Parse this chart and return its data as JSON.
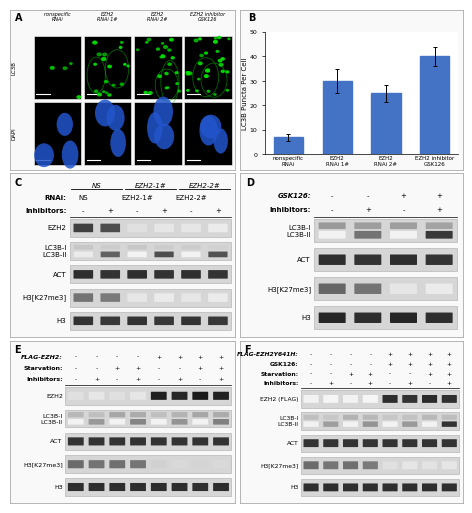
{
  "figure_width": 4.62,
  "figure_height": 5.0,
  "dpi": 100,
  "background_color": "#ffffff",
  "panel_label_fontsize": 7,
  "panel_label_color": "#000000",
  "bar_chart": {
    "categories": [
      "nonspecific\nRNAi",
      "EZH2\nRNAi 1#",
      "EZH2\nRNAi 2#",
      "EZH2 inhibitor\nGSK126"
    ],
    "values": [
      7,
      30,
      25,
      40
    ],
    "errors": [
      1.5,
      5,
      3.5,
      4
    ],
    "bar_color": "#4472c4",
    "bar_width": 0.6,
    "ylabel": "LC3B Puncta Per Cell",
    "ylim": [
      0,
      50
    ],
    "yticks": [
      0,
      10,
      20,
      30,
      40,
      50
    ],
    "ylabel_fontsize": 5.0,
    "tick_fontsize": 4.5,
    "xtick_fontsize": 4.0,
    "error_color": "#000000",
    "error_capsize": 1.5,
    "error_linewidth": 0.7
  },
  "panel_A_col_labels": [
    "nonspecific\nRNAi",
    "EZH2\nRNAi 1#",
    "EZH2\nRNAi 2#",
    "EZH2 inhibitor\nGSK126"
  ],
  "panel_A_row_labels": [
    "LC3B",
    "DAPI"
  ],
  "panel_C_header_names": [
    "RNAi:",
    "Inhibitors:"
  ],
  "panel_C_group_labels": [
    [
      "NS",
      0,
      2
    ],
    [
      "EZH2-1#",
      2,
      4
    ],
    [
      "EZH2-2#",
      4,
      6
    ]
  ],
  "panel_C_signs": [
    [
      "NS",
      "",
      "EZH2-1#",
      "",
      "EZH2-2#",
      ""
    ],
    [
      "-",
      "+",
      "-",
      "+",
      "-",
      "+"
    ]
  ],
  "panel_C_bands": [
    "EZH2",
    "LC3B-I\nLC3B-II",
    "ACT",
    "H3[K27me3]",
    "H3"
  ],
  "panel_C_ncols": 6,
  "panel_D_header_names": [
    "GSK126:",
    "Inhibitors:"
  ],
  "panel_D_signs": [
    [
      "-",
      "-",
      "+",
      "+"
    ],
    [
      "-",
      "+",
      "-",
      "+"
    ]
  ],
  "panel_D_bands": [
    "LC3B-I\nLC3B-II",
    "ACT",
    "H3[K27me3]",
    "H3"
  ],
  "panel_D_ncols": 4,
  "panel_E_header_names": [
    "FLAG-EZH2:",
    "Starvation:",
    "Inhibitors:"
  ],
  "panel_E_signs": [
    [
      "-",
      "-",
      "-",
      "-",
      "+",
      "+",
      "+",
      "+"
    ],
    [
      "-",
      "-",
      "+",
      "+",
      "-",
      "-",
      "+",
      "+"
    ],
    [
      "-",
      "+",
      "-",
      "+",
      "-",
      "+",
      "-",
      "+"
    ]
  ],
  "panel_E_bands": [
    "EZH2",
    "LC3B-I\nLC3B-II",
    "ACT",
    "H3[K27me3]",
    "H3"
  ],
  "panel_E_ncols": 8,
  "panel_F_header_names": [
    "FLAG-EZH2Y641H:",
    "GSK126:",
    "Starvation:",
    "Inhibitors:"
  ],
  "panel_F_signs": [
    [
      "-",
      "-",
      "-",
      "-",
      "+",
      "+",
      "+",
      "+"
    ],
    [
      "-",
      "-",
      "-",
      "-",
      "+",
      "+",
      "+",
      "+"
    ],
    [
      "-",
      "-",
      "+",
      "+",
      "-",
      "-",
      "+",
      "+"
    ],
    [
      "-",
      "+",
      "-",
      "+",
      "-",
      "+",
      "-",
      "+"
    ]
  ],
  "panel_F_bands": [
    "EZH2 (FLAG)",
    "LC3B-I\nLC3B-II",
    "ACT",
    "H3[K27me3]",
    "H3"
  ],
  "panel_F_ncols": 8
}
